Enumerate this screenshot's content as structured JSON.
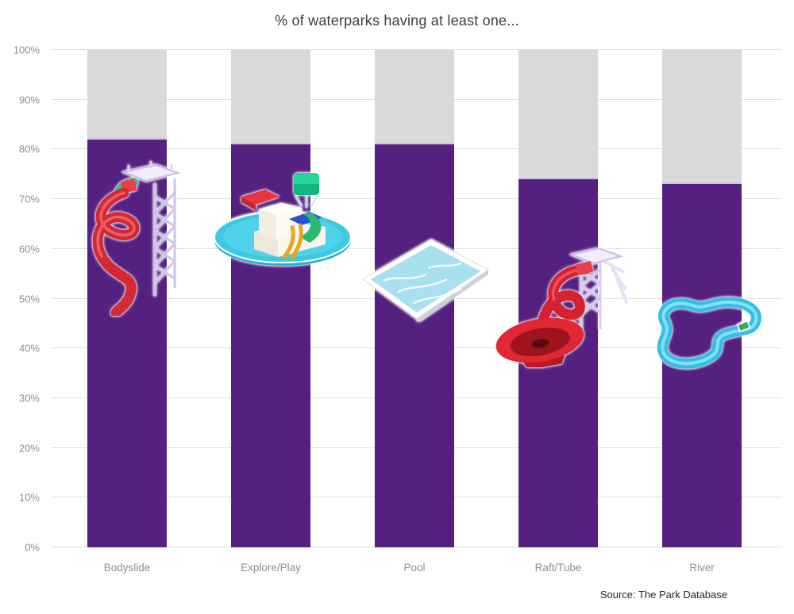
{
  "title": "% of waterparks having at least one...",
  "source": "Source: The Park Database",
  "chart_data": {
    "type": "bar",
    "title": "% of waterparks having at least one...",
    "categories": [
      "Bodyslide",
      "Explore/Play",
      "Pool",
      "Raft/Tube",
      "River"
    ],
    "values": [
      82,
      81,
      81,
      74,
      73
    ],
    "unit": "%",
    "xlabel": "",
    "ylabel": "",
    "ylim": [
      0,
      100
    ],
    "ytick_step": 10,
    "ytick_labels": [
      "0%",
      "10%",
      "20%",
      "30%",
      "40%",
      "50%",
      "60%",
      "70%",
      "80%",
      "90%",
      "100%"
    ],
    "grid": true,
    "legend": false,
    "bar_color": "#552181",
    "track_color": "#d9d9d9",
    "icons": [
      "bodyslide-icon",
      "explore-play-icon",
      "pool-icon",
      "raft-tube-icon",
      "river-icon"
    ],
    "source": "Source: The Park Database"
  },
  "colors": {
    "background": "#ffffff",
    "gridline": "#dcdcdc",
    "axis_text": "#8f8f8f",
    "title_text": "#3d3d3d",
    "source_text": "#262626"
  }
}
